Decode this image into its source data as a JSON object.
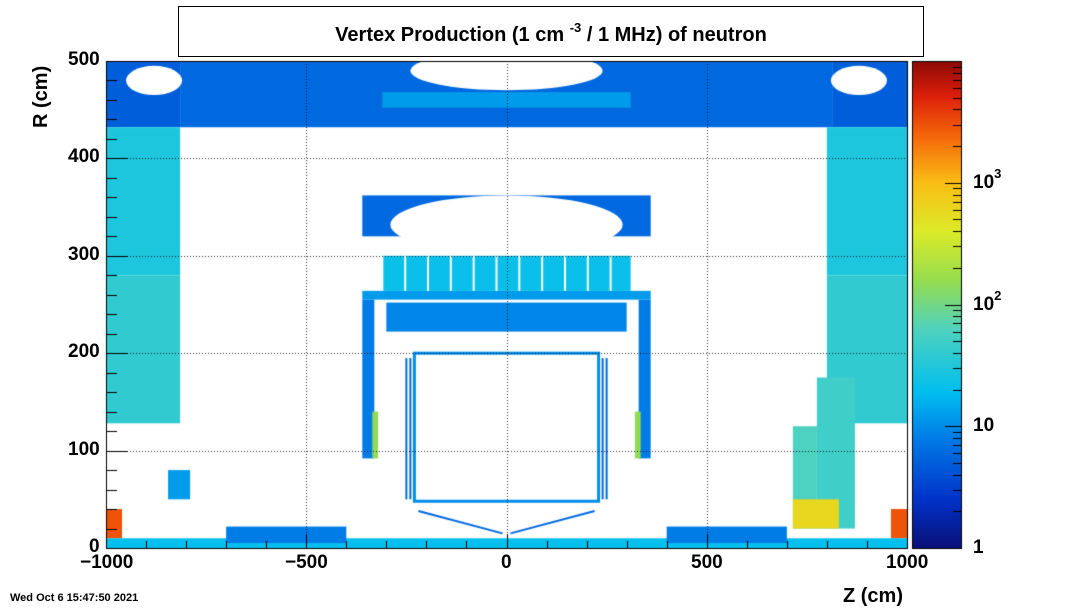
{
  "title": {
    "prefix": "Vertex Production (1 cm",
    "sup": "-3",
    "suffix": "/ 1 MHz) of   neutron"
  },
  "date": "Wed Oct  6 15:47:50 2021",
  "chart_data": {
    "type": "heatmap",
    "title": "Vertex Production (1 cm^-3 / 1 MHz) of neutron",
    "xlabel": "Z (cm)",
    "ylabel": "R (cm)",
    "xlim": [
      -1000,
      1000
    ],
    "ylim": [
      0,
      500
    ],
    "xticks": [
      "−1000",
      "−500",
      "0",
      "500",
      "1000"
    ],
    "xtick_values": [
      -1000,
      -500,
      0,
      500,
      1000
    ],
    "yticks": [
      "0",
      "100",
      "200",
      "300",
      "400",
      "500"
    ],
    "ytick_values": [
      0,
      100,
      200,
      300,
      400,
      500
    ],
    "grid": true,
    "colorbar": {
      "scale": "log",
      "range": [
        1,
        10000
      ],
      "labels": [
        {
          "base": "1",
          "exp": "",
          "value": 1
        },
        {
          "base": "10",
          "exp": "",
          "value": 10
        },
        {
          "base": "10",
          "exp": "2",
          "value": 100
        },
        {
          "base": "10",
          "exp": "3",
          "value": 1000
        }
      ]
    },
    "regions": [
      {
        "name": "outer shell left",
        "z": [
          -1000,
          -815
        ],
        "r": [
          432,
          500
        ],
        "value": 5
      },
      {
        "name": "outer shell center",
        "z": [
          -815,
          815
        ],
        "r": [
          432,
          500
        ],
        "value": 6
      },
      {
        "name": "outer shell right",
        "z": [
          815,
          1000
        ],
        "r": [
          432,
          500
        ],
        "value": 5
      },
      {
        "name": "outer shell band",
        "z": [
          -310,
          310
        ],
        "r": [
          452,
          468
        ],
        "value": 12
      },
      {
        "name": "left endcap upper",
        "z": [
          -1000,
          -815
        ],
        "r": [
          280,
          432
        ],
        "value": 30
      },
      {
        "name": "left endcap lower",
        "z": [
          -1000,
          -815
        ],
        "r": [
          128,
          280
        ],
        "value": 40
      },
      {
        "name": "right endcap upper",
        "z": [
          800,
          1000
        ],
        "r": [
          280,
          432
        ],
        "value": 30
      },
      {
        "name": "right endcap lower",
        "z": [
          800,
          1000
        ],
        "r": [
          128,
          280
        ],
        "value": 40
      },
      {
        "name": "calorimeter shell top",
        "z": [
          -360,
          360
        ],
        "r": [
          320,
          362
        ],
        "value": 6
      },
      {
        "name": "calorimeter modules",
        "z": [
          -310,
          310
        ],
        "r": [
          264,
          300
        ],
        "value": 22
      },
      {
        "name": "calorimeter band",
        "z": [
          -360,
          360
        ],
        "r": [
          255,
          264
        ],
        "value": 12
      },
      {
        "name": "barrel lower",
        "z": [
          -300,
          300
        ],
        "r": [
          222,
          252
        ],
        "value": 9
      },
      {
        "name": "barrel left wall",
        "z": [
          -360,
          -330
        ],
        "r": [
          92,
          255
        ],
        "value": 8
      },
      {
        "name": "barrel right wall",
        "z": [
          330,
          360
        ],
        "r": [
          92,
          255
        ],
        "value": 8
      },
      {
        "name": "left inner pillar",
        "z": [
          -335,
          -320
        ],
        "r": [
          92,
          140
        ],
        "value": 150
      },
      {
        "name": "right inner pillar",
        "z": [
          320,
          335
        ],
        "r": [
          92,
          140
        ],
        "value": 150
      },
      {
        "name": "left small block",
        "z": [
          -845,
          -790
        ],
        "r": [
          50,
          80
        ],
        "value": 12
      },
      {
        "name": "right forward block",
        "z": [
          715,
          775
        ],
        "r": [
          20,
          125
        ],
        "value": 60
      },
      {
        "name": "right forward column",
        "z": [
          775,
          870
        ],
        "r": [
          20,
          175
        ],
        "value": 50
      },
      {
        "name": "right forward hot",
        "z": [
          715,
          830
        ],
        "r": [
          20,
          50
        ],
        "value": 600
      },
      {
        "name": "left corner hot",
        "z": [
          -1000,
          -960
        ],
        "r": [
          10,
          40
        ],
        "value": 3000
      },
      {
        "name": "right corner hot",
        "z": [
          960,
          1000
        ],
        "r": [
          10,
          40
        ],
        "value": 3000
      },
      {
        "name": "beamline",
        "z": [
          -1000,
          1000
        ],
        "r": [
          0,
          10
        ],
        "value": 20
      },
      {
        "name": "left beam structure",
        "z": [
          -700,
          -400
        ],
        "r": [
          5,
          22
        ],
        "value": 8
      },
      {
        "name": "right beam structure",
        "z": [
          400,
          700
        ],
        "r": [
          5,
          22
        ],
        "value": 8
      }
    ]
  }
}
